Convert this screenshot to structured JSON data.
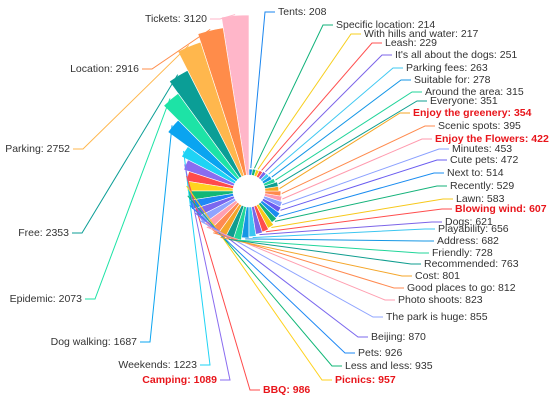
{
  "chart_data": {
    "type": "pie",
    "variant": "nightingale-rose",
    "title": "",
    "highlight_color": "#e8151b",
    "label_color": "#333333",
    "slices": [
      {
        "label": "Tickets",
        "value": 3120,
        "color": "#ffb6c9",
        "highlight": false
      },
      {
        "label": "Location",
        "value": 2916,
        "color": "#ff8c4a",
        "highlight": false
      },
      {
        "label": "Parking",
        "value": 2752,
        "color": "#ffb74d",
        "highlight": false
      },
      {
        "label": "Free",
        "value": 2353,
        "color": "#0b9e96",
        "highlight": false
      },
      {
        "label": "Epidemic",
        "value": 2073,
        "color": "#1de3a6",
        "highlight": false
      },
      {
        "label": "Dog walking",
        "value": 1687,
        "color": "#0aa4f0",
        "highlight": false
      },
      {
        "label": "Weekends",
        "value": 1223,
        "color": "#1ed3f5",
        "highlight": false
      },
      {
        "label": "Camping",
        "value": 1089,
        "color": "#8a6cf0",
        "highlight": true
      },
      {
        "label": "BBQ",
        "value": 986,
        "color": "#ff4b4b",
        "highlight": true
      },
      {
        "label": "Picnics",
        "value": 957,
        "color": "#ffd21e",
        "highlight": true
      },
      {
        "label": "Less and less",
        "value": 935,
        "color": "#11b777",
        "highlight": false
      },
      {
        "label": "Pets",
        "value": 926,
        "color": "#1e88f5",
        "highlight": false
      },
      {
        "label": "Beijing",
        "value": 870,
        "color": "#7b68ee",
        "highlight": false
      },
      {
        "label": "The park is huge",
        "value": 855,
        "color": "#8fa4ff",
        "highlight": false
      },
      {
        "label": "Photo shoots",
        "value": 823,
        "color": "#ff9eb0",
        "highlight": false
      },
      {
        "label": "Good places to go",
        "value": 812,
        "color": "#ff8a50",
        "highlight": false
      },
      {
        "label": "Cost",
        "value": 801,
        "color": "#f4a62a",
        "highlight": false
      },
      {
        "label": "Recommended",
        "value": 763,
        "color": "#0f9d8f",
        "highlight": false
      },
      {
        "label": "Friendly",
        "value": 728,
        "color": "#21d69a",
        "highlight": false
      },
      {
        "label": "Address",
        "value": 682,
        "color": "#1597e5",
        "highlight": false
      },
      {
        "label": "Playability",
        "value": 656,
        "color": "#3bc6f0",
        "highlight": false
      },
      {
        "label": "Dogs",
        "value": 621,
        "color": "#7c64e8",
        "highlight": false
      },
      {
        "label": "Blowing wind",
        "value": 607,
        "color": "#ff4d4d",
        "highlight": true
      },
      {
        "label": "Lawn",
        "value": 583,
        "color": "#f7c81a",
        "highlight": false
      },
      {
        "label": "Recently",
        "value": 529,
        "color": "#14b27a",
        "highlight": false
      },
      {
        "label": "Next to",
        "value": 514,
        "color": "#1a8cf0",
        "highlight": false
      },
      {
        "label": "Cute pets",
        "value": 472,
        "color": "#6a5cf0",
        "highlight": false
      },
      {
        "label": "Minutes",
        "value": 453,
        "color": "#8aa0ff",
        "highlight": false
      },
      {
        "label": "Enjoy the Flowers",
        "value": 422,
        "color": "#ff9aae",
        "highlight": true
      },
      {
        "label": "Scenic spots",
        "value": 395,
        "color": "#ff8a4d",
        "highlight": false
      },
      {
        "label": "Enjoy the greenery",
        "value": 354,
        "color": "#f5a623",
        "highlight": true
      },
      {
        "label": "Everyone",
        "value": 351,
        "color": "#0e9f90",
        "highlight": false
      },
      {
        "label": "Around the area",
        "value": 315,
        "color": "#22d49a",
        "highlight": false
      },
      {
        "label": "Suitable for",
        "value": 278,
        "color": "#1496e6",
        "highlight": false
      },
      {
        "label": "Parking fees",
        "value": 263,
        "color": "#3fc8f2",
        "highlight": false
      },
      {
        "label": "It's all about the dogs",
        "value": 251,
        "color": "#7c64e8",
        "highlight": false
      },
      {
        "label": "Leash",
        "value": 229,
        "color": "#ff5050",
        "highlight": false
      },
      {
        "label": "With hills and water",
        "value": 217,
        "color": "#f7cf1e",
        "highlight": false
      },
      {
        "label": "Specific location",
        "value": 214,
        "color": "#10b27a",
        "highlight": false
      },
      {
        "label": "Tents",
        "value": 208,
        "color": "#1a86ef",
        "highlight": false
      }
    ]
  }
}
